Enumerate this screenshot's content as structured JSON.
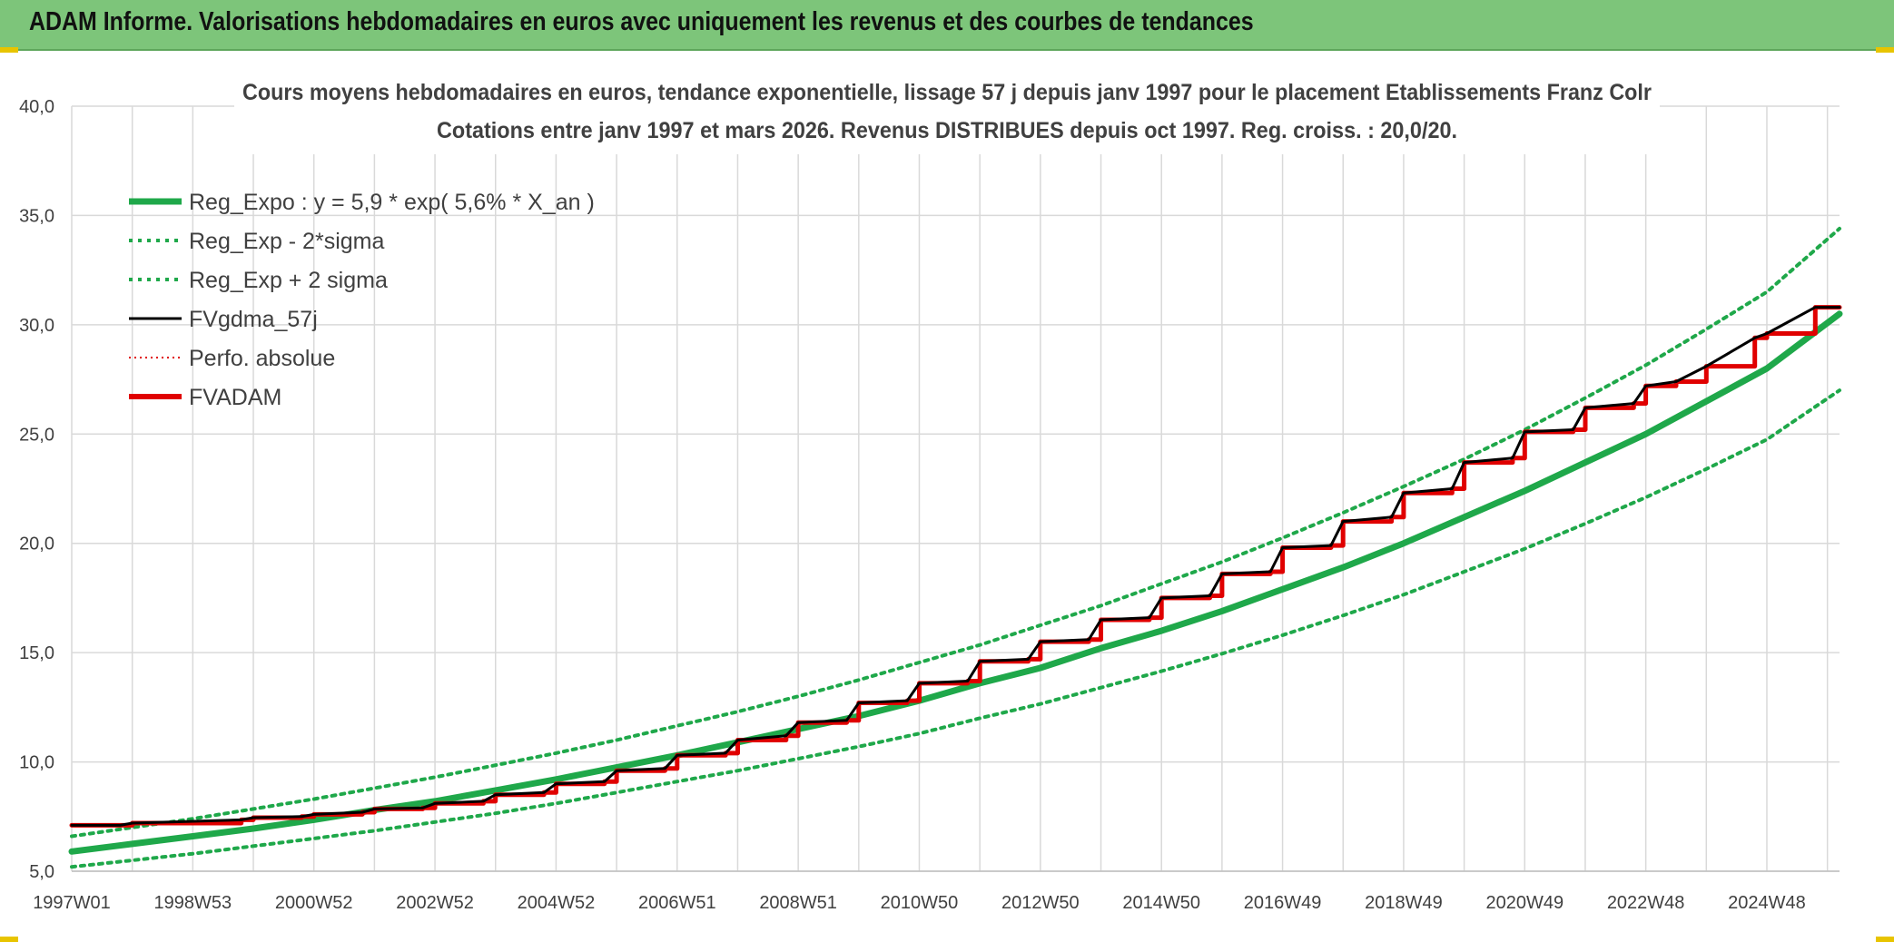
{
  "header": {
    "title": "ADAM Informe. Valorisations hebdomadaires en euros avec uniquement les revenus et des courbes de tendances"
  },
  "chart_data": {
    "type": "line",
    "title": "Cours moyens hebdomadaires en euros, tendance exponentielle, lissage 57 j depuis janv 1997 pour le placement Etablissements Franz Colr",
    "subtitle": "Cotations entre janv 1997 et mars 2026. Revenus DISTRIBUES depuis oct 1997. Reg. croiss. : 20,0/20.",
    "xlabel": "",
    "ylabel": "",
    "ylim": [
      5,
      40
    ],
    "yticks": [
      "5,0",
      "10,0",
      "15,0",
      "20,0",
      "25,0",
      "30,0",
      "35,0",
      "40,0"
    ],
    "xlim": [
      1997.0,
      2026.2
    ],
    "xticks": [
      {
        "x": 1997.0,
        "label": "1997W01"
      },
      {
        "x": 1999.0,
        "label": "1998W53"
      },
      {
        "x": 2001.0,
        "label": "2000W52"
      },
      {
        "x": 2003.0,
        "label": "2002W52"
      },
      {
        "x": 2005.0,
        "label": "2004W52"
      },
      {
        "x": 2007.0,
        "label": "2006W51"
      },
      {
        "x": 2009.0,
        "label": "2008W51"
      },
      {
        "x": 2011.0,
        "label": "2010W50"
      },
      {
        "x": 2013.0,
        "label": "2012W50"
      },
      {
        "x": 2015.0,
        "label": "2014W50"
      },
      {
        "x": 2017.0,
        "label": "2016W49"
      },
      {
        "x": 2019.0,
        "label": "2018W49"
      },
      {
        "x": 2021.0,
        "label": "2020W49"
      },
      {
        "x": 2023.0,
        "label": "2022W48"
      },
      {
        "x": 2025.0,
        "label": "2024W48"
      }
    ],
    "grid": true,
    "legend_position": "top-left",
    "series": [
      {
        "name": "Reg_Expo : y = 5,9 * exp( 5,6% *  X_an )",
        "color": "#1fa84a",
        "style": "solid-thick",
        "x": [
          1997,
          1998,
          1999,
          2000,
          2001,
          2002,
          2003,
          2004,
          2005,
          2006,
          2007,
          2008,
          2009,
          2010,
          2011,
          2012,
          2013,
          2014,
          2015,
          2016,
          2017,
          2018,
          2019,
          2020,
          2021,
          2022,
          2023,
          2024,
          2025,
          2026.2
        ],
        "y": [
          5.9,
          6.25,
          6.6,
          6.95,
          7.35,
          7.8,
          8.2,
          8.7,
          9.2,
          9.75,
          10.3,
          10.9,
          11.5,
          12.1,
          12.8,
          13.6,
          14.3,
          15.2,
          16.0,
          16.9,
          17.9,
          18.9,
          20.0,
          21.2,
          22.4,
          23.7,
          25.0,
          26.5,
          28.0,
          30.5
        ]
      },
      {
        "name": "Reg_Exp - 2*sigma",
        "color": "#1fa84a",
        "style": "dotted",
        "x": [
          1997,
          1998,
          1999,
          2000,
          2001,
          2002,
          2003,
          2004,
          2005,
          2006,
          2007,
          2008,
          2009,
          2010,
          2011,
          2012,
          2013,
          2014,
          2015,
          2016,
          2017,
          2018,
          2019,
          2020,
          2021,
          2022,
          2023,
          2024,
          2025,
          2026.2
        ],
        "y": [
          5.2,
          5.5,
          5.8,
          6.15,
          6.5,
          6.85,
          7.25,
          7.65,
          8.1,
          8.6,
          9.1,
          9.6,
          10.15,
          10.7,
          11.3,
          12.0,
          12.65,
          13.4,
          14.15,
          14.95,
          15.8,
          16.7,
          17.65,
          18.7,
          19.75,
          20.9,
          22.1,
          23.4,
          24.75,
          27.0
        ]
      },
      {
        "name": "Reg_Exp + 2 sigma",
        "color": "#1fa84a",
        "style": "dotted",
        "x": [
          1997,
          1998,
          1999,
          2000,
          2001,
          2002,
          2003,
          2004,
          2005,
          2006,
          2007,
          2008,
          2009,
          2010,
          2011,
          2012,
          2013,
          2014,
          2015,
          2016,
          2017,
          2018,
          2019,
          2020,
          2021,
          2022,
          2023,
          2024,
          2025,
          2026.2
        ],
        "y": [
          6.6,
          7.0,
          7.4,
          7.85,
          8.3,
          8.8,
          9.3,
          9.85,
          10.4,
          11.0,
          11.65,
          12.3,
          13.0,
          13.75,
          14.55,
          15.35,
          16.25,
          17.15,
          18.15,
          19.15,
          20.25,
          21.4,
          22.6,
          23.85,
          25.2,
          26.65,
          28.15,
          29.8,
          31.5,
          34.4
        ]
      },
      {
        "name": "FVgdma_57j",
        "color": "#000000",
        "style": "solid",
        "x": [
          1997.0,
          1997.8,
          1998.0,
          1999.8,
          2000.0,
          2000.8,
          2001.0,
          2001.8,
          2002.0,
          2002.8,
          2003.0,
          2003.8,
          2004.0,
          2004.8,
          2005.0,
          2005.8,
          2006.0,
          2006.8,
          2007.0,
          2007.8,
          2008.0,
          2008.8,
          2009.0,
          2009.8,
          2010.0,
          2010.8,
          2011.0,
          2011.8,
          2012.0,
          2012.8,
          2013.0,
          2013.8,
          2014.0,
          2014.8,
          2015.0,
          2015.8,
          2016.0,
          2016.8,
          2017.0,
          2017.8,
          2018.0,
          2018.8,
          2019.0,
          2019.8,
          2020.0,
          2020.8,
          2021.0,
          2021.8,
          2022.0,
          2022.8,
          2023.0,
          2023.5,
          2024.0,
          2024.8,
          2025.0,
          2025.8,
          2026.2
        ],
        "y": [
          7.1,
          7.1,
          7.2,
          7.35,
          7.45,
          7.5,
          7.6,
          7.7,
          7.85,
          7.9,
          8.1,
          8.2,
          8.5,
          8.6,
          9.0,
          9.1,
          9.6,
          9.7,
          10.3,
          10.4,
          11.0,
          11.2,
          11.8,
          11.9,
          12.7,
          12.8,
          13.6,
          13.7,
          14.6,
          14.7,
          15.5,
          15.6,
          16.5,
          16.6,
          17.5,
          17.6,
          18.6,
          18.7,
          19.8,
          19.9,
          21.0,
          21.2,
          22.3,
          22.5,
          23.7,
          23.9,
          25.1,
          25.2,
          26.2,
          26.4,
          27.2,
          27.4,
          28.1,
          29.4,
          29.6,
          30.8,
          30.8
        ]
      },
      {
        "name": "Perfo. absolue",
        "color": "#e00000",
        "style": "dotted-thin",
        "x": [
          1997.0,
          1997.8,
          1998.0,
          1999.8,
          2000.0,
          2000.8,
          2001.0,
          2001.8,
          2002.0,
          2002.8,
          2003.0,
          2003.8,
          2004.0,
          2004.8,
          2005.0,
          2005.8,
          2006.0,
          2006.8,
          2007.0,
          2007.8,
          2008.0,
          2008.8,
          2009.0,
          2009.8,
          2010.0,
          2010.8,
          2011.0,
          2011.8,
          2012.0,
          2012.8,
          2013.0,
          2013.8,
          2014.0,
          2014.8,
          2015.0,
          2015.8,
          2016.0,
          2016.8,
          2017.0,
          2017.8,
          2018.0,
          2018.8,
          2019.0,
          2019.8,
          2020.0,
          2020.8,
          2021.0,
          2021.8,
          2022.0,
          2022.8,
          2023.0,
          2023.5,
          2024.0,
          2024.8,
          2025.0,
          2025.8,
          2026.2
        ],
        "y": [
          7.1,
          7.1,
          7.2,
          7.35,
          7.45,
          7.5,
          7.6,
          7.7,
          7.85,
          7.9,
          8.1,
          8.2,
          8.5,
          8.6,
          9.0,
          9.1,
          9.6,
          9.7,
          10.3,
          10.4,
          11.0,
          11.2,
          11.8,
          11.9,
          12.7,
          12.8,
          13.6,
          13.7,
          14.6,
          14.7,
          15.5,
          15.6,
          16.5,
          16.6,
          17.5,
          17.6,
          18.6,
          18.7,
          19.8,
          19.9,
          21.0,
          21.2,
          22.3,
          22.5,
          23.7,
          23.9,
          25.1,
          25.2,
          26.2,
          26.4,
          27.2,
          27.4,
          28.1,
          29.4,
          29.6,
          30.8,
          30.8
        ]
      },
      {
        "name": "FVADAM",
        "color": "#e00000",
        "style": "step-thick",
        "x": [
          1997.0,
          1997.8,
          1998.0,
          1999.8,
          2000.0,
          2000.8,
          2001.0,
          2001.8,
          2002.0,
          2002.8,
          2003.0,
          2003.8,
          2004.0,
          2004.8,
          2005.0,
          2005.8,
          2006.0,
          2006.8,
          2007.0,
          2007.8,
          2008.0,
          2008.8,
          2009.0,
          2009.8,
          2010.0,
          2010.8,
          2011.0,
          2011.8,
          2012.0,
          2012.8,
          2013.0,
          2013.8,
          2014.0,
          2014.8,
          2015.0,
          2015.8,
          2016.0,
          2016.8,
          2017.0,
          2017.8,
          2018.0,
          2018.8,
          2019.0,
          2019.8,
          2020.0,
          2020.8,
          2021.0,
          2021.8,
          2022.0,
          2022.8,
          2023.0,
          2023.5,
          2024.0,
          2024.8,
          2025.0,
          2025.8,
          2026.2
        ],
        "y": [
          7.1,
          7.1,
          7.2,
          7.35,
          7.45,
          7.5,
          7.6,
          7.7,
          7.85,
          7.9,
          8.1,
          8.2,
          8.5,
          8.6,
          9.0,
          9.1,
          9.6,
          9.7,
          10.3,
          10.4,
          11.0,
          11.2,
          11.8,
          11.9,
          12.7,
          12.8,
          13.6,
          13.7,
          14.6,
          14.7,
          15.5,
          15.6,
          16.5,
          16.6,
          17.5,
          17.6,
          18.6,
          18.7,
          19.8,
          19.9,
          21.0,
          21.2,
          22.3,
          22.5,
          23.7,
          23.9,
          25.1,
          25.2,
          26.2,
          26.4,
          27.2,
          27.4,
          28.1,
          29.4,
          29.6,
          30.8,
          30.8
        ]
      }
    ]
  }
}
